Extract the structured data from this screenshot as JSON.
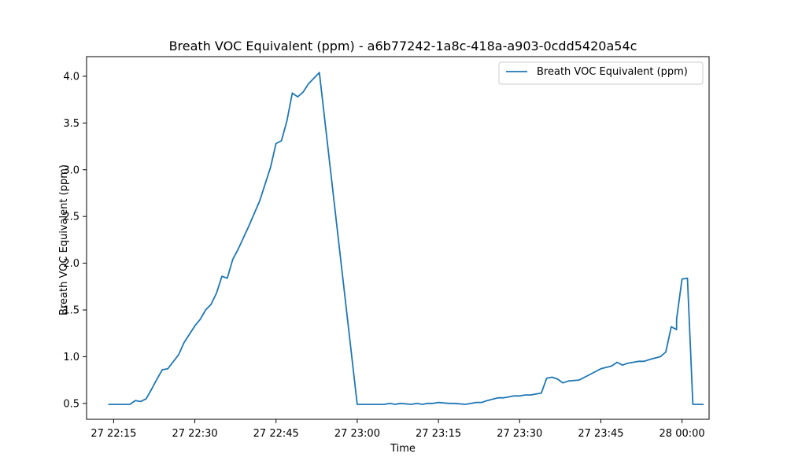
{
  "chart_data": {
    "type": "line",
    "title": "Breath VOC Equivalent (ppm) - a6b77242-1a8c-418a-a903-0cdd5420a54c",
    "xlabel": "Time",
    "ylabel": "Breath VOC Equivalent (ppm)",
    "xlim": [
      "27 22:10",
      "28 00:05"
    ],
    "ylim": [
      0.33,
      4.21
    ],
    "x_ticks": [
      "27 22:15",
      "27 22:30",
      "27 22:45",
      "27 23:00",
      "27 23:15",
      "27 23:30",
      "27 23:45",
      "28 00:00"
    ],
    "y_ticks": [
      "0.5",
      "1.0",
      "1.5",
      "2.0",
      "2.5",
      "3.0",
      "3.5",
      "4.0"
    ],
    "grid": false,
    "legend": "top-right",
    "series": [
      {
        "name": "Breath VOC Equivalent (ppm)",
        "color": "#1f77b4",
        "points": [
          [
            "27 22:14",
            0.49
          ],
          [
            "27 22:18",
            0.49
          ],
          [
            "27 22:19",
            0.53
          ],
          [
            "27 22:20",
            0.52
          ],
          [
            "27 22:21",
            0.55
          ],
          [
            "27 22:22",
            0.65
          ],
          [
            "27 22:23",
            0.76
          ],
          [
            "27 22:24",
            0.86
          ],
          [
            "27 22:25",
            0.87
          ],
          [
            "27 22:27",
            1.02
          ],
          [
            "27 22:28",
            1.15
          ],
          [
            "27 22:30",
            1.33
          ],
          [
            "27 22:31",
            1.4
          ],
          [
            "27 22:32",
            1.5
          ],
          [
            "27 22:33",
            1.56
          ],
          [
            "27 22:34",
            1.68
          ],
          [
            "27 22:35",
            1.86
          ],
          [
            "27 22:36",
            1.84
          ],
          [
            "27 22:37",
            2.04
          ],
          [
            "27 22:38",
            2.15
          ],
          [
            "27 22:40",
            2.4
          ],
          [
            "27 22:42",
            2.67
          ],
          [
            "27 22:44",
            3.03
          ],
          [
            "27 22:45",
            3.28
          ],
          [
            "27 22:46",
            3.31
          ],
          [
            "27 22:47",
            3.52
          ],
          [
            "27 22:48",
            3.82
          ],
          [
            "27 22:49",
            3.78
          ],
          [
            "27 22:50",
            3.83
          ],
          [
            "27 22:51",
            3.92
          ],
          [
            "27 22:53",
            4.04
          ],
          [
            "27 23:00",
            0.49
          ],
          [
            "27 23:05",
            0.49
          ],
          [
            "27 23:06",
            0.5
          ],
          [
            "27 23:07",
            0.49
          ],
          [
            "27 23:08",
            0.5
          ],
          [
            "27 23:10",
            0.49
          ],
          [
            "27 23:11",
            0.5
          ],
          [
            "27 23:12",
            0.49
          ],
          [
            "27 23:13",
            0.5
          ],
          [
            "27 23:14",
            0.5
          ],
          [
            "27 23:15",
            0.51
          ],
          [
            "27 23:17",
            0.5
          ],
          [
            "27 23:18",
            0.5
          ],
          [
            "27 23:20",
            0.49
          ],
          [
            "27 23:21",
            0.5
          ],
          [
            "27 23:22",
            0.51
          ],
          [
            "27 23:23",
            0.51
          ],
          [
            "27 23:24",
            0.53
          ],
          [
            "27 23:26",
            0.56
          ],
          [
            "27 23:27",
            0.56
          ],
          [
            "27 23:28",
            0.57
          ],
          [
            "27 23:29",
            0.58
          ],
          [
            "27 23:30",
            0.58
          ],
          [
            "27 23:31",
            0.59
          ],
          [
            "27 23:32",
            0.59
          ],
          [
            "27 23:33",
            0.6
          ],
          [
            "27 23:34",
            0.61
          ],
          [
            "27 23:35",
            0.77
          ],
          [
            "27 23:36",
            0.78
          ],
          [
            "27 23:37",
            0.76
          ],
          [
            "27 23:38",
            0.72
          ],
          [
            "27 23:39",
            0.74
          ],
          [
            "27 23:41",
            0.75
          ],
          [
            "27 23:43",
            0.81
          ],
          [
            "27 23:45",
            0.87
          ],
          [
            "27 23:47",
            0.9
          ],
          [
            "27 23:48",
            0.94
          ],
          [
            "27 23:49",
            0.91
          ],
          [
            "27 23:50",
            0.93
          ],
          [
            "27 23:52",
            0.95
          ],
          [
            "27 23:53",
            0.95
          ],
          [
            "27 23:54",
            0.97
          ],
          [
            "27 23:56",
            1.0
          ],
          [
            "27 23:57",
            1.05
          ],
          [
            "27 23:58",
            1.32
          ],
          [
            "27 23:59",
            1.29
          ],
          [
            "27 23:59",
            1.4
          ],
          [
            "28 00:00",
            1.83
          ],
          [
            "28 00:01",
            1.84
          ],
          [
            "28 00:02",
            0.49
          ],
          [
            "28 00:04",
            0.49
          ]
        ]
      }
    ]
  }
}
